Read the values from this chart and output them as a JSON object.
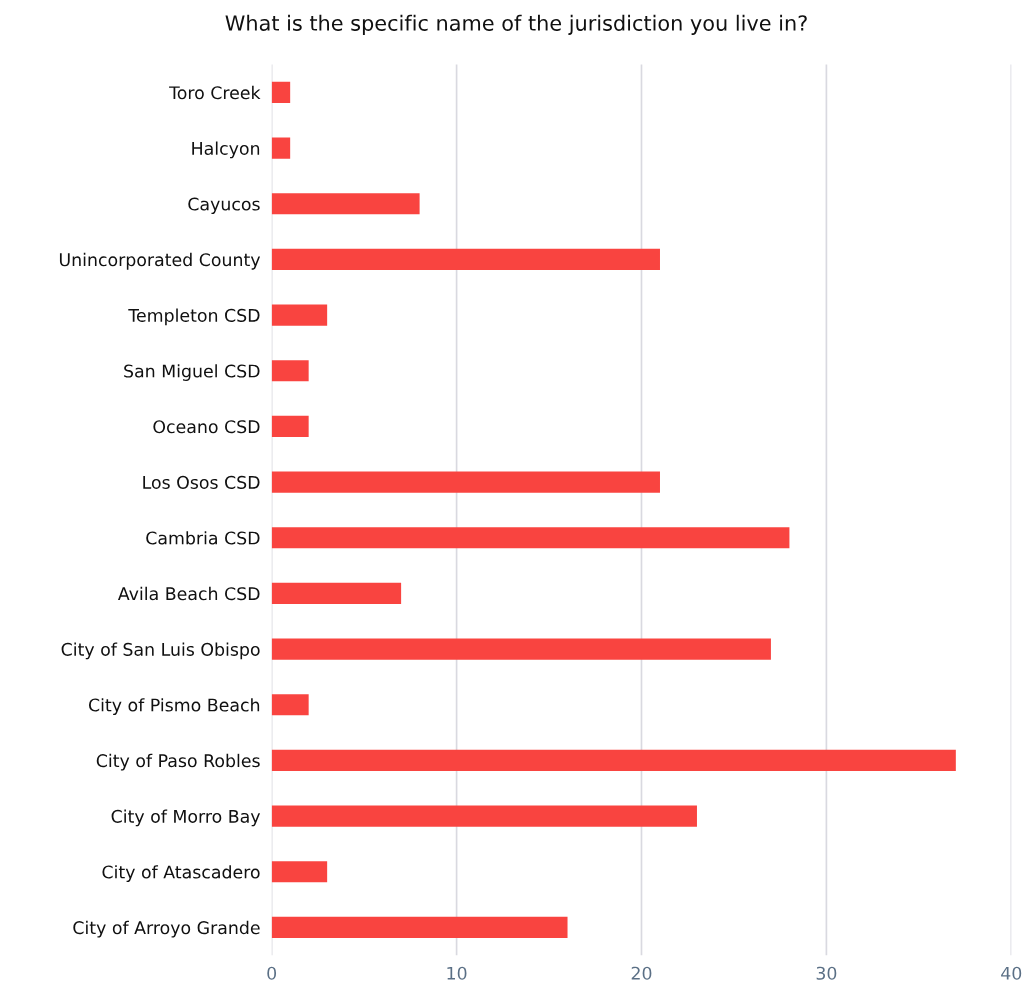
{
  "chart_data": {
    "type": "bar",
    "orientation": "horizontal",
    "title": "What is the specific name of the jurisdiction you live in?",
    "categories": [
      "Toro Creek",
      "Halcyon",
      "Cayucos",
      "Unincorporated County",
      "Templeton CSD",
      "San Miguel CSD",
      "Oceano CSD",
      "Los Osos CSD",
      "Cambria CSD",
      "Avila Beach CSD",
      "City of San Luis Obispo",
      "City of Pismo Beach",
      "City of Paso Robles",
      "City of Morro Bay",
      "City of Atascadero",
      "City of Arroyo Grande"
    ],
    "values": [
      1,
      1,
      8,
      21,
      3,
      2,
      2,
      21,
      28,
      7,
      27,
      2,
      37,
      23,
      3,
      16
    ],
    "color": "#f94440",
    "xlim": [
      0,
      40
    ],
    "xticks": [
      0,
      10,
      20,
      30,
      40
    ],
    "grid": "x"
  }
}
